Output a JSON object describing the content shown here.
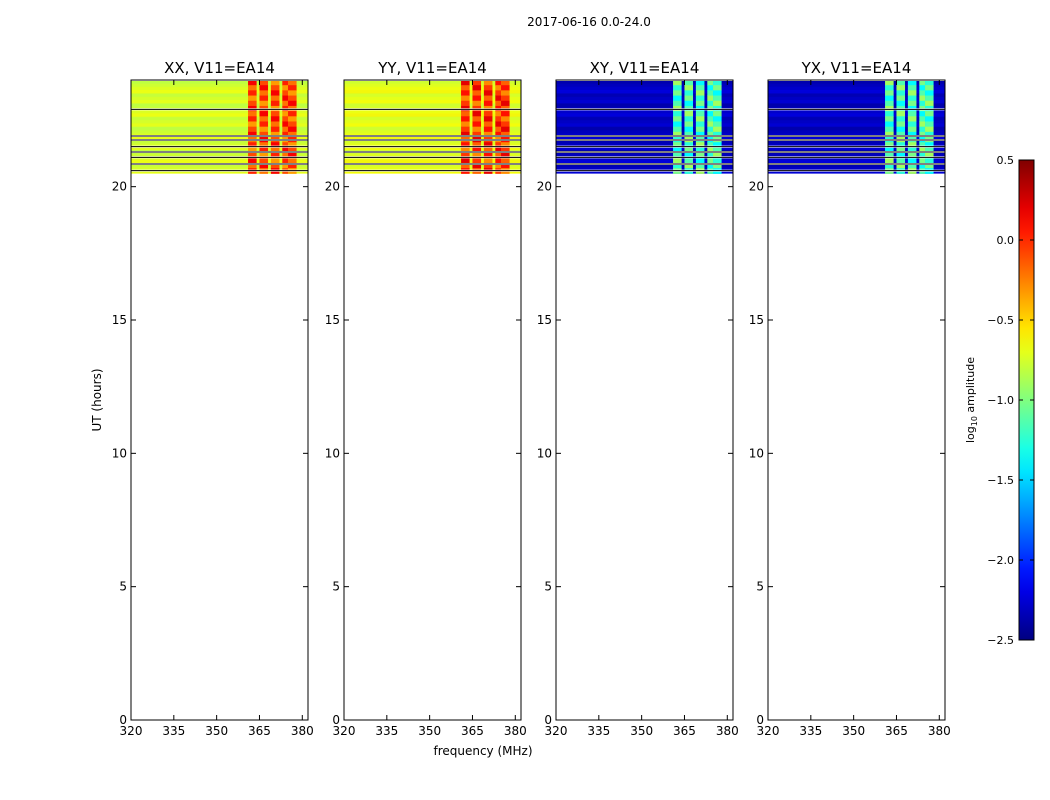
{
  "suptitle": "2017-06-16 0.0-24.0",
  "chart_data": {
    "type": "heatmap",
    "x_axis": {
      "label": "frequency (MHz)",
      "range": [
        320,
        382
      ],
      "ticks": [
        320,
        335,
        350,
        365,
        380
      ],
      "tick_labels": [
        "320",
        "335",
        "350",
        "365",
        "380"
      ]
    },
    "y_axis": {
      "label": "UT (hours)",
      "range": [
        0,
        24
      ],
      "ticks": [
        0,
        5,
        10,
        15,
        20
      ],
      "tick_labels": [
        "0",
        "5",
        "10",
        "15",
        "20"
      ]
    },
    "data_time_range": [
      20.5,
      24.0
    ],
    "gap_lines_ut": [
      24.0,
      22.9,
      21.9,
      21.75,
      21.5,
      21.3,
      21.1,
      20.85,
      20.6
    ],
    "rfi_bands_mhz": [
      [
        361,
        364
      ],
      [
        365,
        368
      ],
      [
        369,
        372
      ],
      [
        373,
        375
      ],
      [
        375,
        378
      ]
    ],
    "panels": [
      {
        "title": "XX, V11=EA14",
        "base_level": -0.75,
        "band_level": 0.15
      },
      {
        "title": "YY, V11=EA14",
        "base_level": -0.7,
        "band_level": 0.2
      },
      {
        "title": "XY, V11=EA14",
        "base_level": -2.3,
        "band_level": -0.9
      },
      {
        "title": "YX, V11=EA14",
        "base_level": -2.3,
        "band_level": -0.9
      }
    ],
    "colorbar": {
      "label_main": "log",
      "label_sub": "10",
      "label_rest": " amplitude",
      "range": [
        -2.5,
        0.5
      ],
      "colormap": "jet",
      "ticks": [
        0.5,
        0.0,
        -0.5,
        -1.0,
        -1.5,
        -2.0,
        -2.5
      ],
      "tick_labels": [
        "0.5",
        "0.0",
        "−0.5",
        "−1.0",
        "−1.5",
        "−2.0",
        "−2.5"
      ]
    }
  }
}
